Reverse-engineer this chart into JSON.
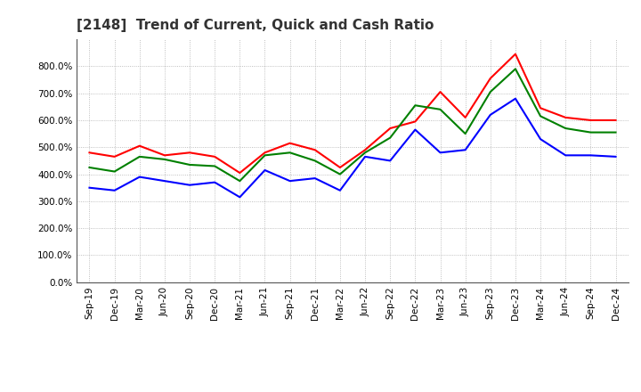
{
  "title": "[2148]  Trend of Current, Quick and Cash Ratio",
  "labels": [
    "Sep-19",
    "Dec-19",
    "Mar-20",
    "Jun-20",
    "Sep-20",
    "Dec-20",
    "Mar-21",
    "Jun-21",
    "Sep-21",
    "Dec-21",
    "Mar-22",
    "Jun-22",
    "Sep-22",
    "Dec-22",
    "Mar-23",
    "Jun-23",
    "Sep-23",
    "Dec-23",
    "Mar-24",
    "Jun-24",
    "Sep-24",
    "Dec-24"
  ],
  "current_ratio": [
    480,
    465,
    505,
    470,
    480,
    465,
    405,
    480,
    515,
    490,
    425,
    490,
    570,
    595,
    705,
    610,
    755,
    845,
    645,
    610,
    600,
    600
  ],
  "quick_ratio": [
    425,
    410,
    465,
    455,
    435,
    430,
    375,
    470,
    480,
    450,
    400,
    480,
    535,
    655,
    640,
    550,
    705,
    790,
    615,
    570,
    555,
    555
  ],
  "cash_ratio": [
    350,
    340,
    390,
    375,
    360,
    370,
    315,
    415,
    375,
    385,
    340,
    465,
    450,
    565,
    480,
    490,
    620,
    680,
    530,
    470,
    470,
    465
  ],
  "current_color": "#FF0000",
  "quick_color": "#008000",
  "cash_color": "#0000FF",
  "ylim": [
    0,
    900
  ],
  "yticks": [
    0,
    100,
    200,
    300,
    400,
    500,
    600,
    700,
    800
  ],
  "background_color": "#ffffff",
  "grid_color": "#999999",
  "linewidth": 1.5,
  "title_fontsize": 11,
  "tick_fontsize": 7.5,
  "legend_fontsize": 9
}
